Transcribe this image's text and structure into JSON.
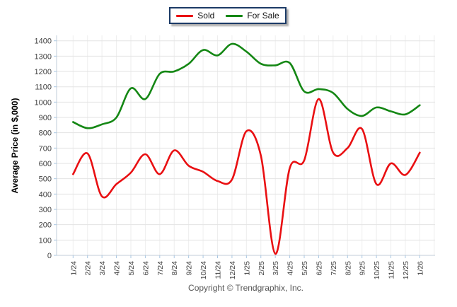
{
  "legend": {
    "items": [
      {
        "label": "Sold",
        "color": "#e90f12"
      },
      {
        "label": "For Sale",
        "color": "#148714"
      }
    ]
  },
  "y_axis_title": "Average Price (in $,000)",
  "footer": {
    "copyright": "Copyright © Trendgraphix, Inc."
  },
  "chart_data": {
    "type": "line",
    "title": "",
    "xlabel": "",
    "ylabel": "Average Price (in $,000)",
    "categories": [
      "1/24",
      "2/24",
      "3/24",
      "4/24",
      "5/24",
      "6/24",
      "7/24",
      "8/24",
      "9/24",
      "10/24",
      "11/24",
      "12/24",
      "1/25",
      "2/25",
      "3/25",
      "4/25",
      "5/25",
      "6/25",
      "7/25",
      "8/25",
      "9/25",
      "10/25",
      "11/25",
      "12/25",
      "1/26"
    ],
    "series": [
      {
        "name": "Sold",
        "color": "#e90f12",
        "values": [
          530,
          665,
          385,
          465,
          540,
          660,
          530,
          685,
          585,
          545,
          485,
          495,
          810,
          650,
          10,
          570,
          620,
          1020,
          670,
          700,
          825,
          465,
          600,
          525,
          670
        ]
      },
      {
        "name": "For Sale",
        "color": "#148714",
        "values": [
          870,
          830,
          855,
          900,
          1090,
          1020,
          1185,
          1200,
          1250,
          1340,
          1305,
          1380,
          1330,
          1250,
          1240,
          1255,
          1070,
          1085,
          1060,
          955,
          910,
          965,
          940,
          920,
          980
        ]
      }
    ],
    "ylim": [
      0,
      1400
    ],
    "ytick_step": 100,
    "grid": true,
    "line_style": "smooth",
    "legend_position": "top-center",
    "colors": {
      "h_grid": "#e3e3e3",
      "v_grid": "#eeeeee",
      "axis": "#c0ccd8",
      "tick": "#a9c7e2",
      "tick_label": "#404040"
    }
  }
}
